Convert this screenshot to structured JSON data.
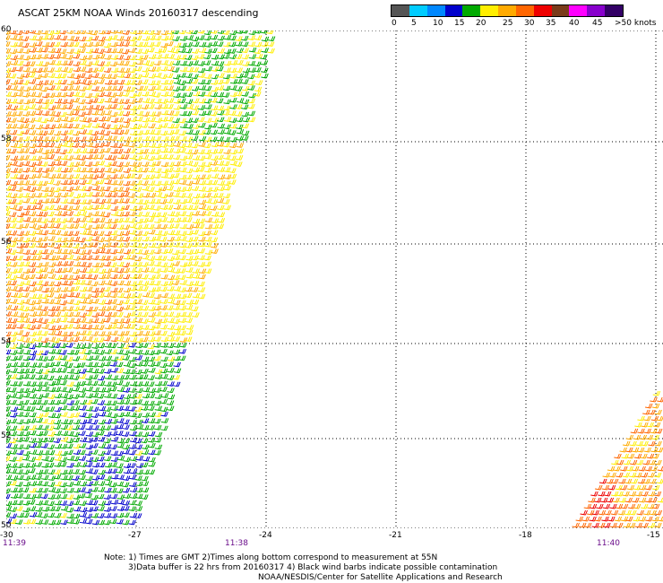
{
  "title": "ASCAT 25KM NOAA Winds 20160317 descending",
  "colorbar": {
    "labels": [
      "0",
      "5",
      "10",
      "15",
      "20",
      "25",
      "30",
      "35",
      "40",
      "45",
      ">50 knots"
    ],
    "colors": [
      "#555555",
      "#00ccff",
      "#0088ff",
      "#0000cc",
      "#00aa00",
      "#ffee00",
      "#ffaa00",
      "#ff6600",
      "#ee0000",
      "#7a3b1a",
      "#ff00ff",
      "#8800cc",
      "#330066"
    ]
  },
  "map": {
    "lat_range": [
      50,
      60
    ],
    "lon_range": [
      -30,
      -15
    ],
    "lat_labels": [
      "60",
      "58",
      "56",
      "54",
      "52",
      "50"
    ],
    "lon_labels": [
      "-30",
      "-27",
      "-24",
      "-21",
      "-18",
      "-15"
    ],
    "grid": "dotted",
    "swaths": [
      {
        "name": "west",
        "times": [
          "11:39",
          "11:38"
        ]
      },
      {
        "name": "east",
        "times": [
          "11:40"
        ]
      }
    ]
  },
  "notes": [
    "Note: 1) Times are GMT 2)Times along bottom correspond to measurement at 55N",
    "3)Data buffer is 22 hrs from 20160317 4) Black wind barbs indicate possible contamination",
    "NOAA/NESDIS/Center for Satellite Applications and Research"
  ]
}
